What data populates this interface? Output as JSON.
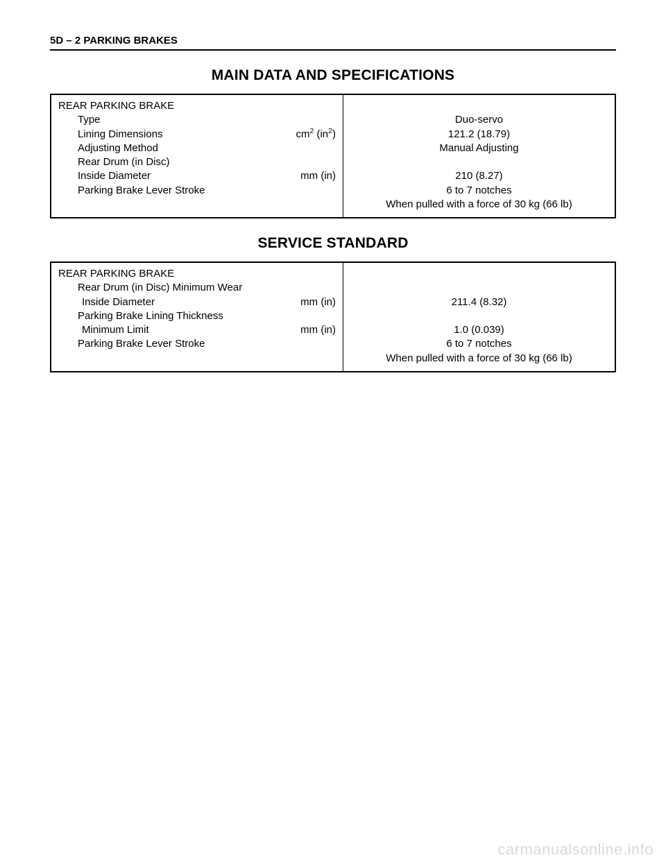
{
  "header": "5D – 2  PARKING BRAKES",
  "section1_title": "MAIN DATA AND SPECIFICATIONS",
  "t1": {
    "heading": "REAR PARKING BRAKE",
    "r1_label": "Type",
    "r1_unit": "",
    "r1_val": "Duo-servo",
    "r2_label": "Lining Dimensions",
    "r2_unit_pre": "cm",
    "r2_unit_mid": " (in",
    "r2_unit_post": ")",
    "r2_val": "121.2 (18.79)",
    "r3_label": "Adjusting Method",
    "r3_unit": "",
    "r3_val": "Manual Adjusting",
    "r4_label": "Rear Drum (in Disc)",
    "r4_unit": "",
    "r4_val": "",
    "r5_label": "Inside Diameter",
    "r5_unit": "mm (in)",
    "r5_val": "210 (8.27)",
    "r6_label": "Parking Brake Lever Stroke",
    "r6_unit": "",
    "r6_val": "6 to 7 notches",
    "r7_val": "When pulled with a force of 30 kg (66 lb)"
  },
  "section2_title": "SERVICE STANDARD",
  "t2": {
    "heading": "REAR PARKING BRAKE",
    "r1_label": "Rear Drum (in Disc) Minimum Wear",
    "r1_unit": "",
    "r1_val": "",
    "r2_label": "Inside Diameter",
    "r2_unit": "mm (in)",
    "r2_val": "211.4 (8.32)",
    "r3_label": "Parking Brake Lining Thickness",
    "r3_unit": "",
    "r3_val": "",
    "r4_label": "Minimum Limit",
    "r4_unit": "mm (in)",
    "r4_val": "1.0 (0.039)",
    "r5_label": "Parking Brake Lever Stroke",
    "r5_unit": "",
    "r5_val": "6 to 7 notches",
    "r6_val": "When pulled with a force of 30 kg (66 lb)"
  },
  "watermark": "carmanualsonline.info"
}
